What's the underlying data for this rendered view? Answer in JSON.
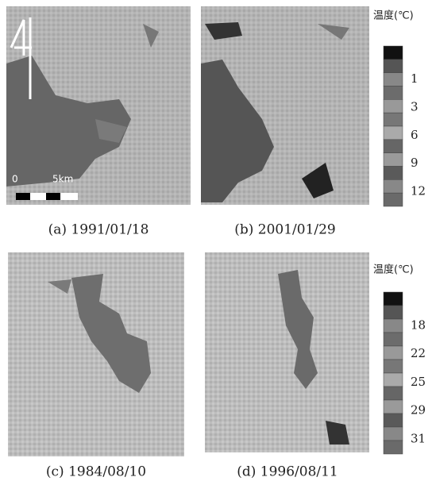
{
  "panels": [
    {
      "caption": "(a) 1991/01/18",
      "scale_start": "0",
      "scale_end": "5km"
    },
    {
      "caption": "(b) 2001/01/29"
    },
    {
      "caption": "(c) 1984/08/10"
    },
    {
      "caption": "(d) 1996/08/11"
    }
  ],
  "legends": [
    {
      "title": "温度(℃)",
      "labels": [
        1,
        3,
        6,
        9,
        12
      ]
    },
    {
      "title": "温度(℃)",
      "labels": [
        18,
        22,
        25,
        29,
        31
      ]
    }
  ]
}
